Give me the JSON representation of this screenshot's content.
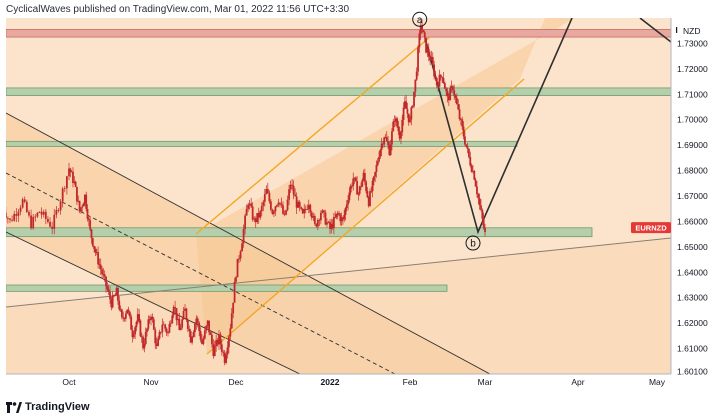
{
  "header": {
    "publisher_text": "CyclicalWaves published on TradingView.com, Mar 01, 2022 11:56 UTC+3:30"
  },
  "footer": {
    "brand": "TradingView"
  },
  "colors": {
    "bg_light": "#fce4cc",
    "bg_mid": "#f8d3ad",
    "band_red": "#e8a89f",
    "band_green": "#b5cfac",
    "band_green_edge": "#6f9a6a",
    "channel_orange": "#f5a623",
    "candle_red": "#c0282b",
    "dark_line": "#2f2f2f",
    "tag_red": "#e53935"
  },
  "chart_data": {
    "type": "candlestick",
    "symbol": "EURNZD",
    "currency": "NZD",
    "ylim": [
      1.6,
      1.74
    ],
    "y_ticks": [
      "1.73000",
      "1.72000",
      "1.71000",
      "1.70000",
      "1.69000",
      "1.68000",
      "1.67000",
      "1.66000",
      "1.65000",
      "1.64000",
      "1.63000",
      "1.62000",
      "1.61000",
      "1.60100"
    ],
    "x_ticks": [
      "Oct",
      "Nov",
      "Dec",
      "2022",
      "Feb",
      "Mar",
      "Apr",
      "May"
    ],
    "last_price": 1.655,
    "series_path": [
      [
        "Sep 15",
        1.666
      ],
      [
        "Sep 17",
        1.66
      ],
      [
        "Sep 20",
        1.668
      ],
      [
        "Sep 22",
        1.659
      ],
      [
        "Sep 24",
        1.664
      ],
      [
        "Sep 27",
        1.658
      ],
      [
        "Sep 29",
        1.669
      ],
      [
        "Oct 01",
        1.681
      ],
      [
        "Oct 03",
        1.675
      ],
      [
        "Oct 05",
        1.664
      ],
      [
        "Oct 07",
        1.67
      ],
      [
        "Oct 09",
        1.656
      ],
      [
        "Oct 11",
        1.648
      ],
      [
        "Oct 14",
        1.638
      ],
      [
        "Oct 17",
        1.628
      ],
      [
        "Oct 19",
        1.632
      ],
      [
        "Oct 21",
        1.621
      ],
      [
        "Oct 23",
        1.626
      ],
      [
        "Oct 25",
        1.616
      ],
      [
        "Oct 27",
        1.622
      ],
      [
        "Oct 29",
        1.611
      ],
      [
        "Nov 01",
        1.624
      ],
      [
        "Nov 03",
        1.61
      ],
      [
        "Nov 05",
        1.62
      ],
      [
        "Nov 07",
        1.616
      ],
      [
        "Nov 09",
        1.628
      ],
      [
        "Nov 11",
        1.617
      ],
      [
        "Nov 13",
        1.625
      ],
      [
        "Nov 15",
        1.614
      ],
      [
        "Nov 17",
        1.622
      ],
      [
        "Nov 19",
        1.612
      ],
      [
        "Nov 21",
        1.62
      ],
      [
        "Nov 23",
        1.609
      ],
      [
        "Nov 25",
        1.614
      ],
      [
        "Nov 27",
        1.606
      ],
      [
        "Nov 29",
        1.619
      ],
      [
        "Dec 01",
        1.64
      ],
      [
        "Dec 03",
        1.653
      ],
      [
        "Dec 05",
        1.668
      ],
      [
        "Dec 07",
        1.66
      ],
      [
        "Dec 09",
        1.663
      ],
      [
        "Dec 11",
        1.672
      ],
      [
        "Dec 13",
        1.664
      ],
      [
        "Dec 15",
        1.669
      ],
      [
        "Dec 17",
        1.661
      ],
      [
        "Dec 19",
        1.675
      ],
      [
        "Dec 21",
        1.667
      ],
      [
        "Dec 23",
        1.662
      ],
      [
        "Dec 25",
        1.668
      ],
      [
        "Dec 27",
        1.658
      ],
      [
        "Dec 29",
        1.664
      ],
      [
        "Jan 01",
        1.657
      ],
      [
        "Jan 04",
        1.663
      ],
      [
        "Jan 06",
        1.66
      ],
      [
        "Jan 08",
        1.67
      ],
      [
        "Jan 10",
        1.677
      ],
      [
        "Jan 12",
        1.671
      ],
      [
        "Jan 14",
        1.678
      ],
      [
        "Jan 16",
        1.668
      ],
      [
        "Jan 18",
        1.676
      ],
      [
        "Jan 20",
        1.687
      ],
      [
        "Jan 22",
        1.694
      ],
      [
        "Jan 24",
        1.688
      ],
      [
        "Jan 26",
        1.701
      ],
      [
        "Jan 28",
        1.694
      ],
      [
        "Jan 30",
        1.706
      ],
      [
        "Feb 01",
        1.699
      ],
      [
        "Feb 03",
        1.715
      ],
      [
        "Feb 05",
        1.738
      ],
      [
        "Feb 07",
        1.728
      ],
      [
        "Feb 09",
        1.723
      ],
      [
        "Feb 11",
        1.714
      ],
      [
        "Feb 13",
        1.718
      ],
      [
        "Feb 15",
        1.708
      ],
      [
        "Feb 17",
        1.713
      ],
      [
        "Feb 19",
        1.703
      ],
      [
        "Feb 21",
        1.694
      ],
      [
        "Feb 23",
        1.685
      ],
      [
        "Feb 25",
        1.678
      ],
      [
        "Feb 27",
        1.666
      ],
      [
        "Mar 01",
        1.655
      ]
    ],
    "horizontal_zones": [
      {
        "name": "resistance-red",
        "y": [
          1.7325,
          1.7355
        ],
        "color": "red"
      },
      {
        "name": "zone-1.711",
        "y": [
          1.7095,
          1.7125
        ],
        "color": "green"
      },
      {
        "name": "zone-1.690",
        "y": [
          1.6895,
          1.6915
        ],
        "color": "green"
      },
      {
        "name": "zone-1.655",
        "y": [
          1.654,
          1.6575
        ],
        "color": "green"
      },
      {
        "name": "zone-1.633",
        "y": [
          1.6325,
          1.635
        ],
        "color": "green"
      }
    ],
    "wave_labels": [
      {
        "text": "a",
        "date": "Feb 05",
        "price": 1.7395
      },
      {
        "text": "b",
        "date": "Mar 01",
        "price": 1.6515
      }
    ],
    "title": "",
    "xlabel": "",
    "ylabel": ""
  }
}
